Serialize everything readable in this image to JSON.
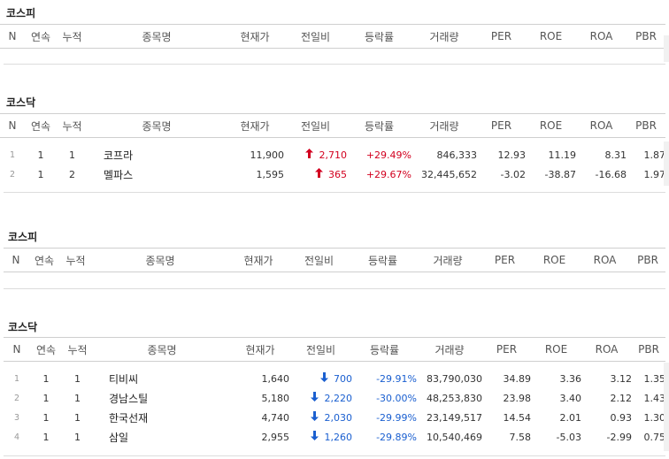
{
  "headers": [
    "N",
    "연속",
    "누적",
    "종목명",
    "현재가",
    "전일비",
    "등락률",
    "거래량",
    "PER",
    "ROE",
    "ROA",
    "PBR"
  ],
  "blocks": [
    {
      "title": "코스피",
      "rows": []
    },
    {
      "title": "코스닥",
      "rows": [
        {
          "n": "1",
          "streak": "1",
          "total": "1",
          "name": "코프라",
          "price": "11,900",
          "dir": "up",
          "change": "2,710",
          "rate": "+29.49%",
          "volume": "846,333",
          "per": "12.93",
          "roe": "11.19",
          "roa": "8.31",
          "pbr": "1.87"
        },
        {
          "n": "2",
          "streak": "1",
          "total": "2",
          "name": "멜파스",
          "price": "1,595",
          "dir": "up",
          "change": "365",
          "rate": "+29.67%",
          "volume": "32,445,652",
          "per": "-3.02",
          "roe": "-38.87",
          "roa": "-16.68",
          "pbr": "1.97"
        }
      ]
    },
    {
      "title": "코스피",
      "rows": []
    },
    {
      "title": "코스닥",
      "rows": [
        {
          "n": "1",
          "streak": "1",
          "total": "1",
          "name": "티비씨",
          "price": "1,640",
          "dir": "down",
          "change": "700",
          "rate": "-29.91%",
          "volume": "83,790,030",
          "per": "34.89",
          "roe": "3.36",
          "roa": "3.12",
          "pbr": "1.35"
        },
        {
          "n": "2",
          "streak": "1",
          "total": "1",
          "name": "경남스틸",
          "price": "5,180",
          "dir": "down",
          "change": "2,220",
          "rate": "-30.00%",
          "volume": "48,253,830",
          "per": "23.98",
          "roe": "3.40",
          "roa": "2.12",
          "pbr": "1.43"
        },
        {
          "n": "3",
          "streak": "1",
          "total": "1",
          "name": "한국선재",
          "price": "4,740",
          "dir": "down",
          "change": "2,030",
          "rate": "-29.99%",
          "volume": "23,149,517",
          "per": "14.54",
          "roe": "2.01",
          "roa": "0.93",
          "pbr": "1.30"
        },
        {
          "n": "4",
          "streak": "1",
          "total": "1",
          "name": "삼일",
          "price": "2,955",
          "dir": "down",
          "change": "1,260",
          "rate": "-29.89%",
          "volume": "10,540,469",
          "per": "7.58",
          "roe": "-5.03",
          "roa": "-2.99",
          "pbr": "0.75"
        }
      ]
    }
  ],
  "icons": {
    "up": "up-arrow-icon",
    "down": "down-arrow-icon"
  },
  "colors": {
    "up": "#d2001f",
    "down": "#1a5fd0"
  }
}
